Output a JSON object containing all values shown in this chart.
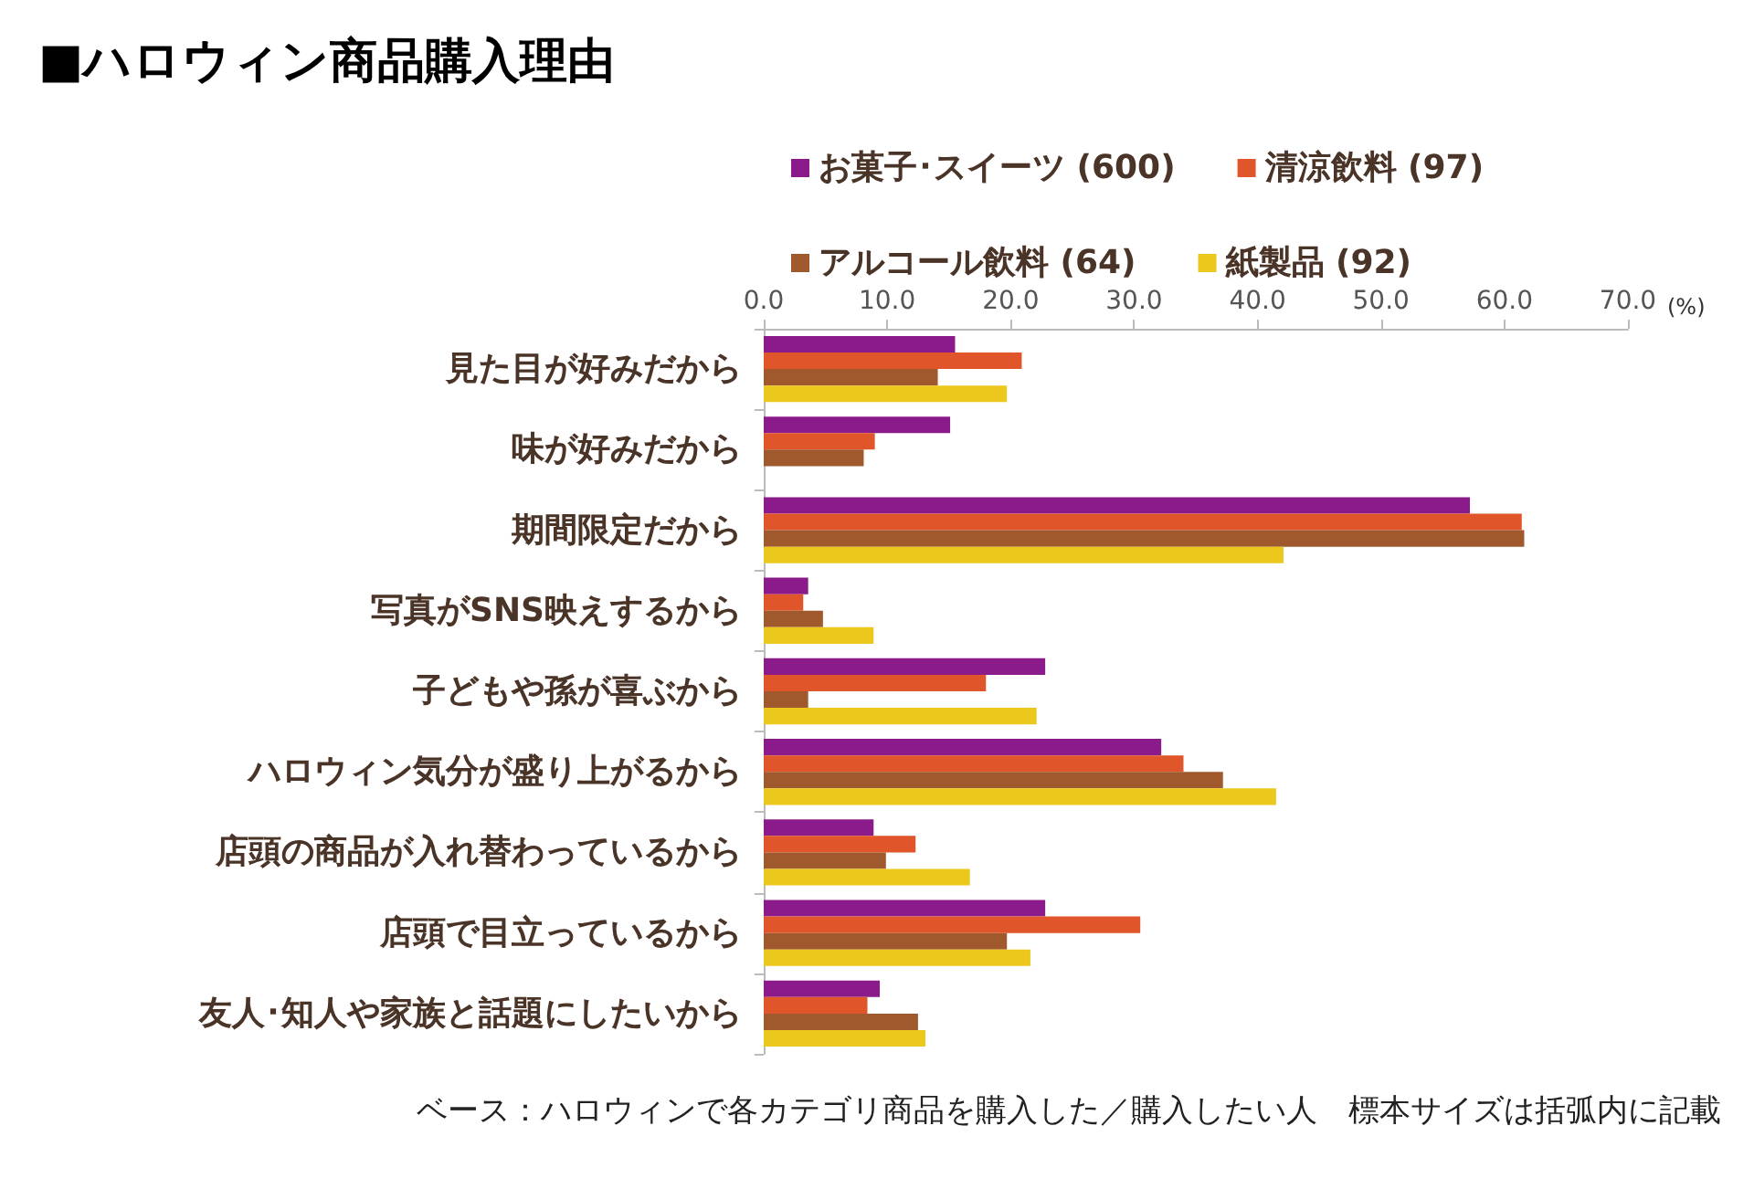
{
  "chart_data": {
    "type": "bar",
    "orientation": "horizontal",
    "title": "■ハロウィン商品購入理由",
    "xlabel": "(%)",
    "categories": [
      "見た目が好みだから",
      "味が好みだから",
      "期間限定だから",
      "写真がSNS映えするから",
      "子どもや孫が喜ぶから",
      "ハロウィン気分が盛り上がるから",
      "店頭の商品が入れ替わっているから",
      "店頭で目立っているから",
      "友人･知人や家族と話題にしたいから"
    ],
    "series": [
      {
        "name": "お菓子･スイーツ (600)",
        "color": "#8b1a8b",
        "values": [
          15.5,
          15.1,
          57.2,
          3.6,
          22.8,
          32.2,
          8.9,
          22.8,
          9.4
        ]
      },
      {
        "name": "清涼飲料 (97)",
        "color": "#e0562a",
        "values": [
          20.9,
          9.0,
          61.4,
          3.2,
          18.0,
          34.0,
          12.3,
          30.5,
          8.4
        ]
      },
      {
        "name": "アルコール飲料 (64)",
        "color": "#a0592c",
        "values": [
          14.1,
          8.1,
          61.6,
          4.8,
          3.6,
          37.2,
          9.9,
          19.7,
          12.5
        ]
      },
      {
        "name": "紙製品 (92)",
        "color": "#ecc71c",
        "values": [
          19.7,
          null,
          42.1,
          8.9,
          22.1,
          41.5,
          16.7,
          21.6,
          13.1
        ]
      }
    ],
    "xlim": [
      0,
      70
    ],
    "xticks": [
      {
        "value": 0,
        "label": "0.0"
      },
      {
        "value": 10,
        "label": "10.0"
      },
      {
        "value": 20,
        "label": "20.0"
      },
      {
        "value": 30,
        "label": "30.0"
      },
      {
        "value": 40,
        "label": "40.0"
      },
      {
        "value": 50,
        "label": "50.0"
      },
      {
        "value": 60,
        "label": "60.0"
      },
      {
        "value": 70,
        "label": "70.0"
      }
    ],
    "grid": false,
    "legend": "top",
    "annotations": [
      "ベース：ハロウィンで各カテゴリ商品を購入した／購入したい人　標本サイズは括弧内に記載"
    ]
  }
}
